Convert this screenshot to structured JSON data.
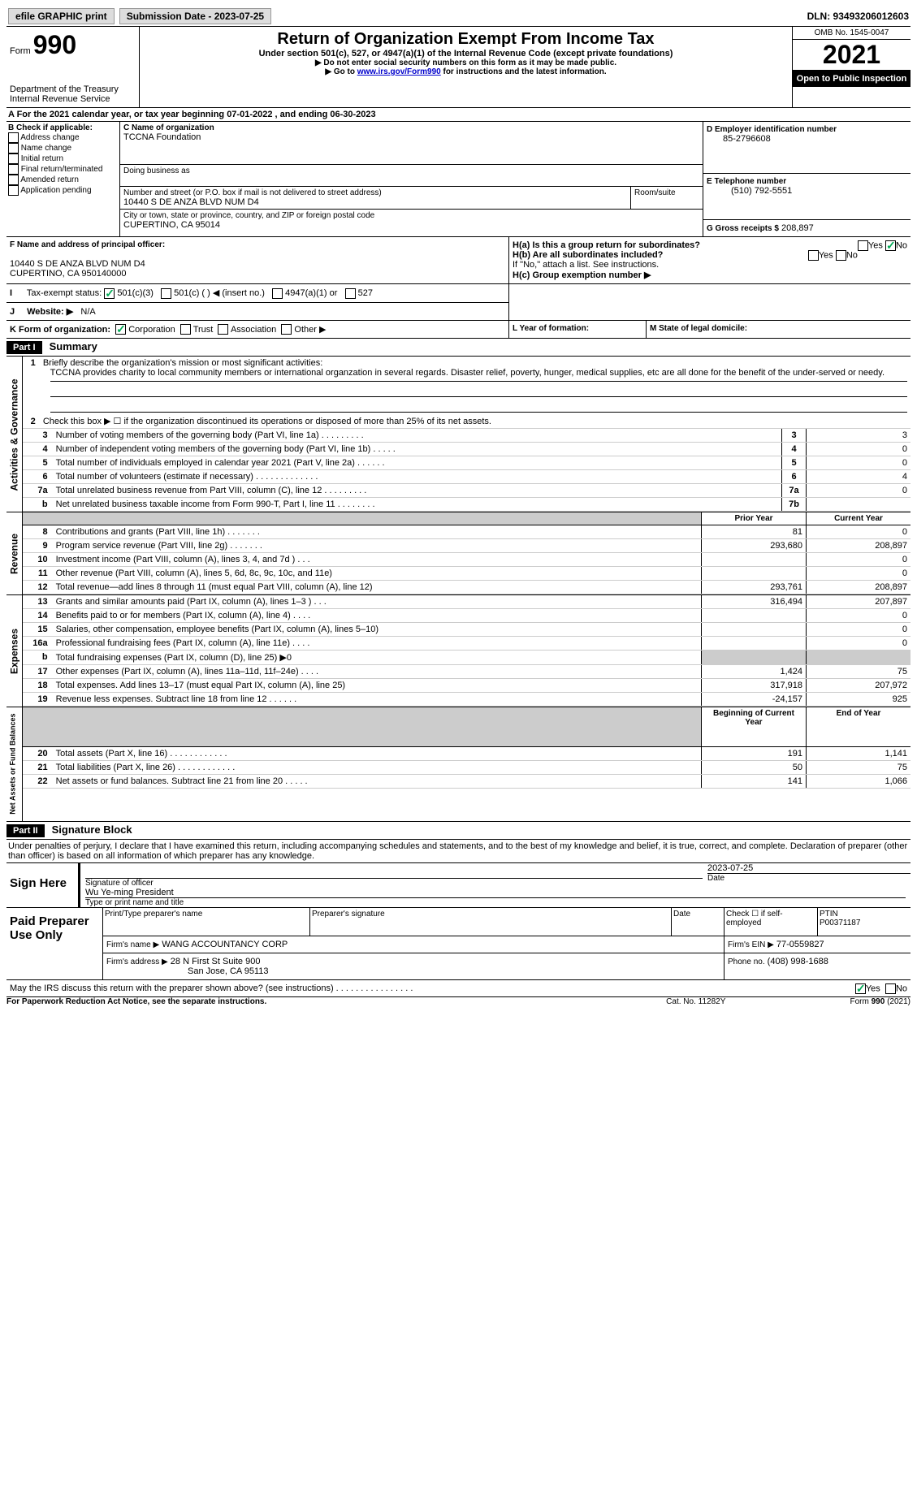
{
  "header": {
    "efile_label": "efile GRAPHIC print",
    "sub_date_label": "Submission Date - 2023-07-25",
    "dln": "DLN: 93493206012603"
  },
  "title_block": {
    "form_label": "Form",
    "form_number": "990",
    "main_title": "Return of Organization Exempt From Income Tax",
    "subtitle": "Under section 501(c), 527, or 4947(a)(1) of the Internal Revenue Code (except private foundations)",
    "instr1": "▶ Do not enter social security numbers on this form as it may be made public.",
    "instr2_prefix": "▶ Go to ",
    "instr2_link": "www.irs.gov/Form990",
    "instr2_suffix": " for instructions and the latest information.",
    "dept": "Department of the Treasury",
    "irs": "Internal Revenue Service",
    "omb": "OMB No. 1545-0047",
    "year": "2021",
    "inspection": "Open to Public Inspection"
  },
  "section_a": {
    "line_a": "A  For the 2021 calendar year, or tax year beginning 07-01-2022    , and ending 06-30-2023",
    "b_label": "B Check if applicable:",
    "b_opts": [
      "Address change",
      "Name change",
      "Initial return",
      "Final return/terminated",
      "Amended return",
      "Application pending"
    ],
    "c_label": "C Name of organization",
    "c_name": "TCCNA Foundation",
    "dba_label": "Doing business as",
    "addr_label": "Number and street (or P.O. box if mail is not delivered to street address)",
    "room_label": "Room/suite",
    "addr": "10440 S DE ANZA BLVD NUM D4",
    "city_label": "City or town, state or province, country, and ZIP or foreign postal code",
    "city": "CUPERTINO, CA   95014",
    "d_label": "D Employer identification number",
    "d_ein": "85-2796608",
    "e_label": "E Telephone number",
    "e_phone": "(510) 792-5551",
    "g_label": "G Gross receipts $",
    "g_val": "208,897",
    "f_label": "F Name and address of principal officer:",
    "f_addr1": "10440 S DE ANZA BLVD NUM D4",
    "f_addr2": "CUPERTINO, CA   950140000",
    "ha_label": "H(a)  Is this a group return for subordinates?",
    "hb_label": "H(b)  Are all subordinates included?",
    "hb_note": "If \"No,\" attach a list. See instructions.",
    "hc_label": "H(c)  Group exemption number ▶",
    "yes": "Yes",
    "no": "No",
    "i_label": "Tax-exempt status:",
    "i_opt1": "501(c)(3)",
    "i_opt2": "501(c) (   ) ◀ (insert no.)",
    "i_opt3": "4947(a)(1) or",
    "i_opt4": "527",
    "j_label": "Website: ▶",
    "j_val": "N/A",
    "k_label": "K Form of organization:",
    "k_opts": [
      "Corporation",
      "Trust",
      "Association",
      "Other ▶"
    ],
    "l_label": "L Year of formation:",
    "m_label": "M State of legal domicile:"
  },
  "part1": {
    "header": "Part I",
    "title": "Summary",
    "line1_label": "Briefly describe the organization's mission or most significant activities:",
    "line1_text": "TCCNA provides charity to local community members or international organzation in several regards. Disaster relief, poverty, hunger, medical supplies, etc are all done for the benefit of the under-served or needy.",
    "line2": "Check this box ▶ ☐  if the organization discontinued its operations or disposed of more than 25% of its net assets.",
    "rows_top": [
      {
        "n": "3",
        "label": "Number of voting members of the governing body (Part VI, line 1a)   .    .    .    .    .    .    .    .    .",
        "box": "3",
        "val": "3"
      },
      {
        "n": "4",
        "label": "Number of independent voting members of the governing body (Part VI, line 1b)   .    .    .    .    .",
        "box": "4",
        "val": "0"
      },
      {
        "n": "5",
        "label": "Total number of individuals employed in calendar year 2021 (Part V, line 2a)   .    .    .    .    .    .",
        "box": "5",
        "val": "0"
      },
      {
        "n": "6",
        "label": "Total number of volunteers (estimate if necessary)    .    .    .    .    .    .    .    .    .    .    .    .    .",
        "box": "6",
        "val": "4"
      },
      {
        "n": "7a",
        "label": "Total unrelated business revenue from Part VIII, column (C), line 12   .    .    .    .    .    .    .    .    .",
        "box": "7a",
        "val": "0"
      },
      {
        "n": "b",
        "label": "Net unrelated business taxable income from Form 990-T, Part I, line 11   .    .    .    .    .    .    .    .",
        "box": "7b",
        "val": ""
      }
    ],
    "col_prior": "Prior Year",
    "col_current": "Current Year",
    "col_begin": "Beginning of Current Year",
    "col_end": "End of Year",
    "revenue": [
      {
        "n": "8",
        "label": "Contributions and grants (Part VIII, line 1h)   .    .    .    .    .    .    .",
        "p": "81",
        "c": "0"
      },
      {
        "n": "9",
        "label": "Program service revenue (Part VIII, line 2g)   .    .    .    .    .    .    .",
        "p": "293,680",
        "c": "208,897"
      },
      {
        "n": "10",
        "label": "Investment income (Part VIII, column (A), lines 3, 4, and 7d )   .    .    .",
        "p": "",
        "c": "0"
      },
      {
        "n": "11",
        "label": "Other revenue (Part VIII, column (A), lines 5, 6d, 8c, 9c, 10c, and 11e)",
        "p": "",
        "c": "0"
      },
      {
        "n": "12",
        "label": "Total revenue—add lines 8 through 11 (must equal Part VIII, column (A), line 12)",
        "p": "293,761",
        "c": "208,897"
      }
    ],
    "expenses": [
      {
        "n": "13",
        "label": "Grants and similar amounts paid (Part IX, column (A), lines 1–3 )   .    .    .",
        "p": "316,494",
        "c": "207,897"
      },
      {
        "n": "14",
        "label": "Benefits paid to or for members (Part IX, column (A), line 4)   .    .    .    .",
        "p": "",
        "c": "0"
      },
      {
        "n": "15",
        "label": "Salaries, other compensation, employee benefits (Part IX, column (A), lines 5–10)",
        "p": "",
        "c": "0"
      },
      {
        "n": "16a",
        "label": "Professional fundraising fees (Part IX, column (A), line 11e)   .    .    .    .",
        "p": "",
        "c": "0"
      },
      {
        "n": "b",
        "label": "Total fundraising expenses (Part IX, column (D), line 25) ▶0",
        "p": "grey",
        "c": "grey"
      },
      {
        "n": "17",
        "label": "Other expenses (Part IX, column (A), lines 11a–11d, 11f–24e)   .    .    .    .",
        "p": "1,424",
        "c": "75"
      },
      {
        "n": "18",
        "label": "Total expenses. Add lines 13–17 (must equal Part IX, column (A), line 25)",
        "p": "317,918",
        "c": "207,972"
      },
      {
        "n": "19",
        "label": "Revenue less expenses. Subtract line 18 from line 12   .    .    .    .    .    .",
        "p": "-24,157",
        "c": "925"
      }
    ],
    "netassets": [
      {
        "n": "20",
        "label": "Total assets (Part X, line 16)   .    .    .    .    .    .    .    .    .    .    .    .",
        "p": "191",
        "c": "1,141"
      },
      {
        "n": "21",
        "label": "Total liabilities (Part X, line 26)   .    .    .    .    .    .    .    .    .    .    .    .",
        "p": "50",
        "c": "75"
      },
      {
        "n": "22",
        "label": "Net assets or fund balances. Subtract line 21 from line 20   .    .    .    .    .",
        "p": "141",
        "c": "1,066"
      }
    ],
    "vlabels": {
      "ag": "Activities & Governance",
      "rev": "Revenue",
      "exp": "Expenses",
      "na": "Net Assets or Fund Balances"
    }
  },
  "part2": {
    "header": "Part II",
    "title": "Signature Block",
    "penalty": "Under penalties of perjury, I declare that I have examined this return, including accompanying schedules and statements, and to the best of my knowledge and belief, it is true, correct, and complete. Declaration of preparer (other than officer) is based on all information of which preparer has any knowledge.",
    "sign_here": "Sign Here",
    "sig_off": "Signature of officer",
    "date": "Date",
    "sig_date": "2023-07-25",
    "name_title": "Wu Ye-ming  President",
    "type_name": "Type or print name and title",
    "paid_prep": "Paid Preparer Use Only",
    "print_name": "Print/Type preparer's name",
    "prep_sig": "Preparer's signature",
    "check_if": "Check ☐ if self-employed",
    "ptin_label": "PTIN",
    "ptin": "P00371187",
    "firm_name_label": "Firm's name      ▶",
    "firm_name": "WANG ACCOUNTANCY CORP",
    "firm_ein_label": "Firm's EIN ▶",
    "firm_ein": "77-0559827",
    "firm_addr_label": "Firm's address ▶",
    "firm_addr1": "28 N First St Suite 900",
    "firm_addr2": "San Jose, CA   95113",
    "phone_label": "Phone no.",
    "phone": "(408) 998-1688",
    "discuss": "May the IRS discuss this return with the preparer shown above? (see instructions)   .    .    .    .    .    .    .    .    .    .    .    .    .    .    .    .",
    "paperwork": "For Paperwork Reduction Act Notice, see the separate instructions.",
    "cat": "Cat. No. 11282Y",
    "form_bottom": "Form 990 (2021)"
  }
}
